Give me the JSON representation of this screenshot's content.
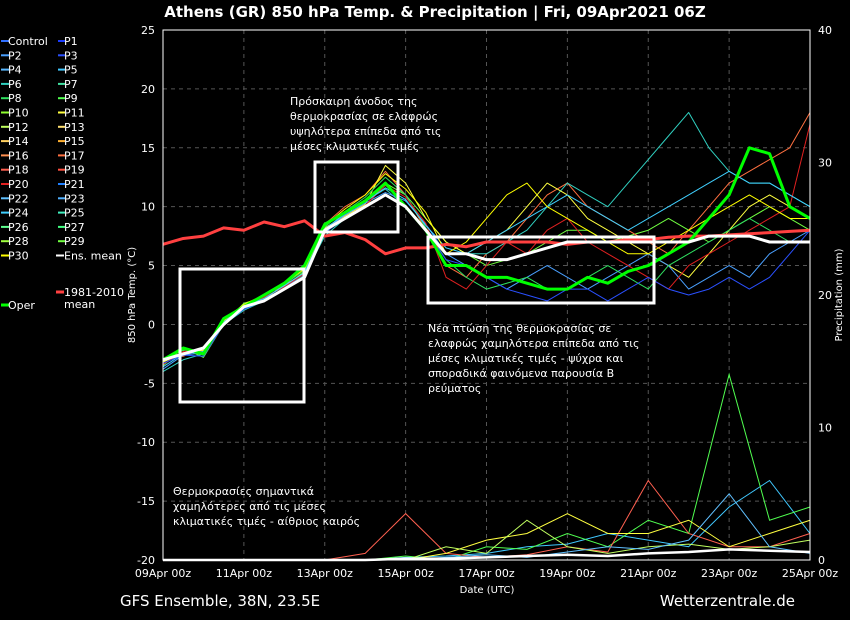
{
  "chart_data": {
    "type": "line",
    "title": "Athens  (GR)  850 hPa Temp. & Precipitation | Fri, 09Apr2021 06Z",
    "xlabel": "Date (UTC)",
    "ylabel": "850 hPa Temp. (°C)",
    "ylabel_right": "Precipitation (mm)",
    "ylim": [
      -20,
      25
    ],
    "ylim_right": [
      0,
      40
    ],
    "y_ticks": [
      "25",
      "20",
      "15",
      "10",
      "5",
      "0",
      "-5",
      "-10",
      "-15",
      "-20"
    ],
    "y_ticks_right": [
      "40",
      "30",
      "20",
      "10",
      "0"
    ],
    "x_ticks": [
      "09Apr 00z",
      "11Apr 00z",
      "13Apr 00z",
      "15Apr 00z",
      "17Apr 00z",
      "19Apr 00z",
      "21Apr 00z",
      "23Apr 00z",
      "25Apr 00z"
    ],
    "grid": true,
    "legend_position": "left",
    "legend": [
      "Control",
      "P1",
      "P2",
      "P3",
      "P4",
      "P5",
      "P6",
      "P7",
      "P8",
      "P9",
      "P10",
      "P11",
      "P12",
      "P13",
      "P14",
      "P15",
      "P16",
      "P17",
      "P18",
      "P19",
      "P20",
      "P21",
      "P22",
      "P23",
      "P24",
      "P25",
      "P26",
      "P27",
      "P28",
      "P29",
      "P30",
      "Ens. mean",
      "Oper",
      "1981-2010 mean"
    ],
    "legend_colors": [
      "#3070ff",
      "#1a3cff",
      "#4aa0ff",
      "#2a50ff",
      "#5ab8ff",
      "#40c8ff",
      "#30d0c0",
      "#40e0a0",
      "#30e060",
      "#50ff50",
      "#90ff30",
      "#ffff40",
      "#c0ff60",
      "#ffe070",
      "#ffd060",
      "#ffb030",
      "#ff9050",
      "#ff7040",
      "#ff6050",
      "#ff5040",
      "#e02020",
      "#2080ff",
      "#60c0ff",
      "#50b0ff",
      "#40d0ff",
      "#40f0c0",
      "#60ff90",
      "#40ff80",
      "#a0ff40",
      "#70ff40",
      "#ffff00",
      "#ffffff",
      "#00ff00",
      "#ff4040"
    ],
    "series": [
      {
        "name": "Ens. mean",
        "x": [
          0,
          0.5,
          1,
          1.5,
          2,
          2.5,
          3,
          3.5,
          4,
          4.5,
          5,
          5.5,
          6,
          6.5,
          7,
          7.5,
          8,
          8.5,
          9,
          9.5,
          10,
          10.5,
          11,
          11.5,
          12,
          12.5,
          13,
          13.5,
          14,
          14.5,
          15,
          15.5,
          16
        ],
        "values": [
          -3,
          -2.5,
          -2,
          0,
          1.5,
          2,
          3,
          4,
          8,
          9,
          10,
          11,
          10,
          8,
          6,
          6,
          5.5,
          5.5,
          6,
          6.5,
          7,
          7,
          7,
          7,
          7,
          7,
          7,
          7.5,
          7.5,
          7.5,
          7,
          7,
          7
        ]
      },
      {
        "name": "Oper",
        "x": [
          0,
          0.5,
          1,
          1.5,
          2,
          2.5,
          3,
          3.5,
          4,
          4.5,
          5,
          5.5,
          6,
          6.5,
          7,
          7.5,
          8,
          8.5,
          9,
          9.5,
          10,
          10.5,
          11,
          11.5,
          12,
          12.5,
          13,
          13.5,
          14,
          14.5,
          15,
          15.5,
          16
        ],
        "values": [
          -3,
          -2,
          -2.5,
          0.5,
          1.5,
          2.5,
          3.5,
          5,
          8.5,
          9.5,
          10.5,
          12,
          10,
          8,
          5,
          5,
          4,
          4,
          3.5,
          3,
          3,
          4,
          3.5,
          4.5,
          5,
          6,
          7,
          9,
          11,
          15,
          14.5,
          10,
          9
        ]
      },
      {
        "name": "1981-2010 mean",
        "x": [
          0,
          0.5,
          1,
          1.5,
          2,
          2.5,
          3,
          3.5,
          4,
          4.5,
          5,
          5.5,
          6,
          6.5,
          7,
          7.5,
          8,
          8.5,
          9,
          9.5,
          10,
          10.5,
          11,
          11.5,
          12,
          12.5,
          13,
          13.5,
          14,
          14.5,
          15,
          15.5,
          16
        ],
        "values": [
          6.8,
          7.3,
          7.5,
          8.2,
          8,
          8.7,
          8.3,
          8.8,
          7.5,
          7.8,
          7.2,
          6,
          6.5,
          6.5,
          6.8,
          6.6,
          7,
          7,
          7,
          7,
          6.8,
          7,
          7,
          7.2,
          7.2,
          7.4,
          7.5,
          7.5,
          7.6,
          7.7,
          7.8,
          7.9,
          8
        ]
      },
      {
        "name": "P29",
        "x": [
          0,
          0.5,
          1,
          1.5,
          2,
          2.5,
          3,
          3.5,
          4,
          4.5,
          5,
          5.5,
          6,
          6.5,
          7,
          7.5,
          8,
          8.5,
          9,
          9.5,
          10,
          10.5,
          11,
          11.5,
          12,
          12.5,
          13,
          13.5,
          14,
          14.5,
          15,
          15.5,
          16
        ],
        "values": [
          -3.5,
          -2,
          -2.8,
          0,
          1.8,
          2.3,
          3.2,
          4.5,
          8,
          9.5,
          10,
          12,
          11,
          9,
          7,
          6,
          5,
          5.5,
          6,
          7,
          8,
          8,
          7,
          7.5,
          8,
          9,
          8,
          7,
          8,
          9,
          10,
          9,
          8
        ]
      },
      {
        "name": "P17",
        "x": [
          0,
          0.5,
          1,
          1.5,
          2,
          2.5,
          3,
          3.5,
          4,
          4.5,
          5,
          5.5,
          6,
          6.5,
          7,
          7.5,
          8,
          8.5,
          9,
          9.5,
          10,
          10.5,
          11,
          11.5,
          12,
          12.5,
          13,
          13.5,
          14,
          14.5,
          15,
          15.5,
          16
        ],
        "values": [
          -3,
          -2.7,
          -2,
          0.3,
          1.5,
          2,
          3.5,
          4,
          8.5,
          10,
          11,
          13,
          11,
          8,
          5,
          4,
          6,
          7,
          9,
          11,
          12,
          10,
          9,
          8,
          7,
          6,
          8,
          10,
          12,
          13,
          14,
          15,
          18
        ]
      },
      {
        "name": "P6",
        "x": [
          0,
          0.5,
          1,
          1.5,
          2,
          2.5,
          3,
          3.5,
          4,
          4.5,
          5,
          5.5,
          6,
          6.5,
          7,
          7.5,
          8,
          8.5,
          9,
          9.5,
          10,
          10.5,
          11,
          11.5,
          12,
          12.5,
          13,
          13.5,
          14,
          14.5,
          15,
          15.5,
          16
        ],
        "values": [
          -4,
          -3,
          -2.5,
          0,
          1.2,
          2,
          3,
          4.2,
          7.5,
          9,
          10.5,
          11.5,
          10,
          8,
          6,
          6,
          6,
          7,
          8,
          10,
          12,
          11,
          10,
          12,
          14,
          16,
          18,
          15,
          13,
          12,
          12,
          11,
          10
        ]
      },
      {
        "name": "P11",
        "x": [
          0,
          0.5,
          1,
          1.5,
          2,
          2.5,
          3,
          3.5,
          4,
          4.5,
          5,
          5.5,
          6,
          6.5,
          7,
          7.5,
          8,
          8.5,
          9,
          9.5,
          10,
          10.5,
          11,
          11.5,
          12,
          12.5,
          13,
          13.5,
          14,
          14.5,
          15,
          15.5,
          16
        ],
        "values": [
          -3.2,
          -2.4,
          -2.2,
          0.2,
          1.6,
          2.2,
          3.3,
          4.4,
          8.2,
          9.2,
          10.2,
          13.5,
          12,
          9,
          7,
          6,
          7,
          8,
          10,
          12,
          11,
          9,
          8,
          7,
          6,
          5,
          4,
          6,
          8,
          10,
          11,
          10,
          9
        ]
      },
      {
        "name": "P2",
        "x": [
          0,
          0.5,
          1,
          1.5,
          2,
          2.5,
          3,
          3.5,
          4,
          4.5,
          5,
          5.5,
          6,
          6.5,
          7,
          7.5,
          8,
          8.5,
          9,
          9.5,
          10,
          10.5,
          11,
          11.5,
          12,
          12.5,
          13,
          13.5,
          14,
          14.5,
          15,
          15.5,
          16
        ],
        "values": [
          -3.8,
          -2.6,
          -2.4,
          0,
          1.4,
          2.1,
          3.1,
          4.3,
          8,
          9.3,
          10.3,
          11.2,
          10.5,
          8.5,
          6,
          5,
          4,
          3,
          4,
          5,
          4,
          3,
          4,
          5,
          6,
          5,
          3,
          4,
          5,
          4,
          6,
          7,
          8
        ]
      },
      {
        "name": "P8",
        "x": [
          0,
          0.5,
          1,
          1.5,
          2,
          2.5,
          3,
          3.5,
          4,
          4.5,
          5,
          5.5,
          6,
          6.5,
          7,
          7.5,
          8,
          8.5,
          9,
          9.5,
          10,
          10.5,
          11,
          11.5,
          12,
          12.5,
          13,
          13.5,
          14,
          14.5,
          15,
          15.5,
          16
        ],
        "values": [
          -3,
          -2.2,
          -2.6,
          0.4,
          1.7,
          2.4,
          3.4,
          4.6,
          8.3,
          9.6,
          10.8,
          12.5,
          11,
          8.2,
          5.5,
          4,
          3,
          3.5,
          4,
          3,
          3,
          4,
          5,
          4,
          3,
          5,
          6,
          7,
          8,
          9,
          8,
          7,
          7
        ]
      },
      {
        "name": "P20",
        "x": [
          0,
          0.5,
          1,
          1.5,
          2,
          2.5,
          3,
          3.5,
          4,
          4.5,
          5,
          5.5,
          6,
          6.5,
          7,
          7.5,
          8,
          8.5,
          9,
          9.5,
          10,
          10.5,
          11,
          11.5,
          12,
          12.5,
          13,
          13.5,
          14,
          14.5,
          15,
          15.5,
          16
        ],
        "values": [
          -3.4,
          -2.3,
          -2.1,
          0.1,
          1.5,
          2.3,
          3.2,
          4.3,
          8.1,
          9.1,
          10.1,
          11.8,
          10.8,
          8.6,
          4,
          3,
          5,
          7,
          6,
          8,
          9,
          7,
          6,
          5,
          4,
          3,
          5,
          6,
          7,
          8,
          9,
          10,
          17
        ]
      },
      {
        "name": "P24",
        "x": [
          0,
          0.5,
          1,
          1.5,
          2,
          2.5,
          3,
          3.5,
          4,
          4.5,
          5,
          5.5,
          6,
          6.5,
          7,
          7.5,
          8,
          8.5,
          9,
          9.5,
          10,
          10.5,
          11,
          11.5,
          12,
          12.5,
          13,
          13.5,
          14,
          14.5,
          15,
          15.5,
          16
        ],
        "values": [
          -3.6,
          -2.5,
          -2.3,
          0.2,
          1.6,
          2.2,
          3.3,
          4.4,
          8.1,
          9.4,
          10.4,
          11.6,
          10.6,
          8.4,
          6.5,
          6,
          7,
          8,
          9,
          10,
          11,
          10,
          9,
          8,
          9,
          10,
          11,
          12,
          13,
          12,
          12,
          11,
          10
        ]
      },
      {
        "name": "P30",
        "x": [
          0,
          0.5,
          1,
          1.5,
          2,
          2.5,
          3,
          3.5,
          4,
          4.5,
          5,
          5.5,
          6,
          6.5,
          7,
          7.5,
          8,
          8.5,
          9,
          9.5,
          10,
          10.5,
          11,
          11.5,
          12,
          12.5,
          13,
          13.5,
          14,
          14.5,
          15,
          15.5,
          16
        ],
        "values": [
          -3.1,
          -2.1,
          -2.4,
          0.3,
          1.7,
          2.5,
          3.5,
          4.7,
          8.4,
          9.8,
          11,
          12.8,
          11.5,
          9.5,
          6,
          7,
          9,
          11,
          12,
          10,
          9,
          8,
          7,
          6,
          6,
          7,
          8,
          9,
          10,
          11,
          10,
          9,
          9
        ]
      },
      {
        "name": "P3",
        "x": [
          0,
          0.5,
          1,
          1.5,
          2,
          2.5,
          3,
          3.5,
          4,
          4.5,
          5,
          5.5,
          6,
          6.5,
          7,
          7.5,
          8,
          8.5,
          9,
          9.5,
          10,
          10.5,
          11,
          11.5,
          12,
          12.5,
          13,
          13.5,
          14,
          14.5,
          15,
          15.5,
          16
        ],
        "values": [
          -3.3,
          -2.6,
          -2.7,
          0,
          1.3,
          2,
          3,
          4.1,
          7.8,
          9,
          10,
          11,
          10,
          8,
          5.5,
          5,
          4,
          3,
          2.5,
          2,
          3,
          3,
          2,
          3,
          4,
          3,
          2.5,
          3,
          4,
          3,
          4,
          6,
          8
        ]
      }
    ],
    "precipitation_series": [
      {
        "name": "P5",
        "x": [
          0,
          1,
          2,
          3,
          4,
          5,
          6,
          7,
          8,
          9,
          10,
          11,
          12,
          13,
          14,
          15,
          16
        ],
        "values": [
          0,
          0,
          0,
          0,
          0,
          0,
          0.2,
          0.3,
          0.5,
          1,
          1.2,
          2,
          1.5,
          1,
          4,
          6,
          2
        ]
      },
      {
        "name": "P9",
        "x": [
          0,
          1,
          2,
          3,
          4,
          5,
          6,
          7,
          8,
          9,
          10,
          11,
          12,
          13,
          14,
          15,
          16
        ],
        "values": [
          0,
          0,
          0,
          0,
          0,
          0,
          0.3,
          0,
          1,
          0.8,
          2,
          1,
          3,
          2,
          14,
          3,
          4
        ]
      },
      {
        "name": "P18",
        "x": [
          0,
          1,
          2,
          3,
          4,
          5,
          6,
          7,
          8,
          9,
          10,
          11,
          12,
          13,
          14,
          15,
          16
        ],
        "values": [
          0,
          0,
          0,
          0,
          0,
          0.5,
          3.5,
          0.5,
          0.2,
          0.4,
          1,
          0.6,
          6,
          2,
          1,
          1,
          2
        ]
      },
      {
        "name": "P11",
        "x": [
          0,
          1,
          2,
          3,
          4,
          5,
          6,
          7,
          8,
          9,
          10,
          11,
          12,
          13,
          14,
          15,
          16
        ],
        "values": [
          0,
          0,
          0,
          0,
          0,
          0,
          0,
          0.5,
          1.5,
          2,
          3.5,
          2,
          2,
          3,
          1,
          2,
          3
        ]
      },
      {
        "name": "P12",
        "x": [
          0,
          1,
          2,
          3,
          4,
          5,
          6,
          7,
          8,
          9,
          10,
          11,
          12,
          13,
          14,
          15,
          16
        ],
        "values": [
          0,
          0,
          0,
          0,
          0,
          0,
          0,
          1,
          0.5,
          3,
          1,
          0.5,
          1,
          1.2,
          0.8,
          1,
          1.5
        ]
      },
      {
        "name": "P22",
        "x": [
          0,
          1,
          2,
          3,
          4,
          5,
          6,
          7,
          8,
          9,
          10,
          11,
          12,
          13,
          14,
          15,
          16
        ],
        "values": [
          0,
          0,
          0,
          0,
          0,
          0,
          0,
          0.2,
          0.4,
          0.2,
          0.6,
          1,
          0.8,
          1.5,
          5,
          1,
          0.5
        ]
      },
      {
        "name": "Ens. mean",
        "x": [
          0,
          1,
          2,
          3,
          4,
          5,
          6,
          7,
          8,
          9,
          10,
          11,
          12,
          13,
          14,
          15,
          16
        ],
        "values": [
          0,
          0,
          0,
          0,
          0,
          0,
          0.1,
          0.1,
          0.2,
          0.3,
          0.4,
          0.3,
          0.5,
          0.6,
          0.8,
          0.7,
          0.6
        ]
      }
    ],
    "annotations": [
      {
        "lines": [
          "Πρόσκαιρη άνοδος της",
          "θερμοκρασίας σε ελαφρώς",
          "υψηλότερα επίπεδα από τις",
          "μέσες κλιματικές τιμές"
        ]
      },
      {
        "lines": [
          "Νέα πτώση της θερμοκρασίας σε",
          "ελαφρώς χαμηλότερα επίπεδα από τις",
          "μέσες κλιματικές τιμές - ψύχρα και",
          "σποραδικά φαινόμενα παρουσία Β",
          "ρεύματος"
        ]
      },
      {
        "lines": [
          "Θερμοκρασίες σημαντικά",
          "χαμηλότερες από τις μέσες",
          "κλιματικές τιμές - αίθριος καιρός"
        ]
      }
    ]
  },
  "footer": {
    "left": "GFS Ensemble, 38N, 23.5E",
    "right": "Wetterzentrale.de"
  }
}
